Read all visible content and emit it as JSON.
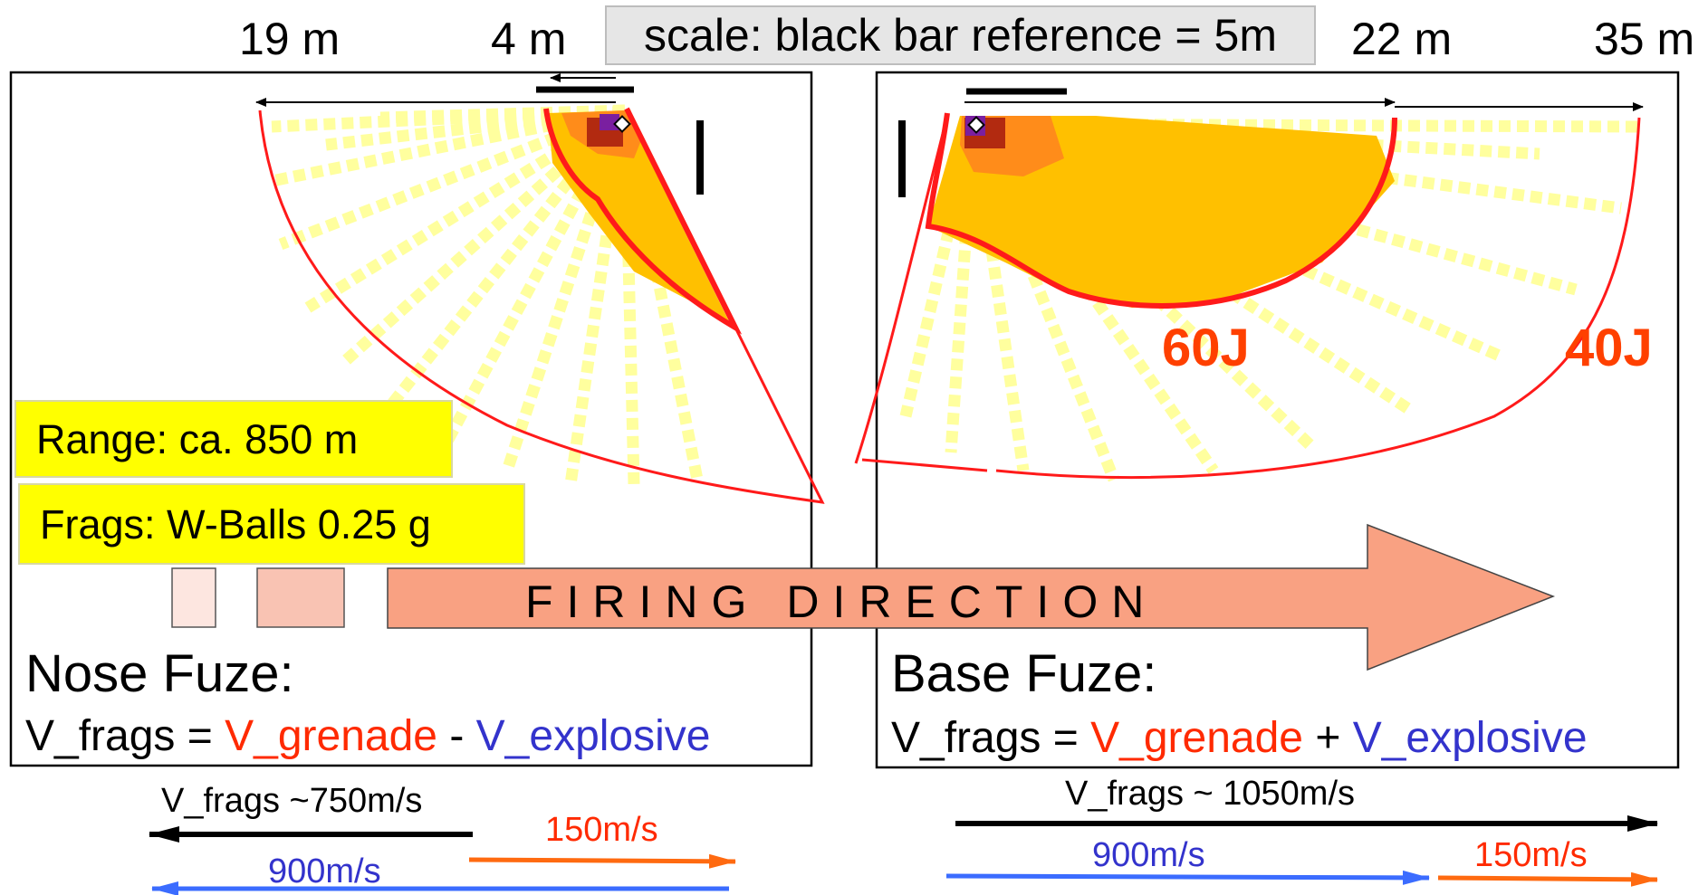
{
  "distances": {
    "d1": "19 m",
    "d2": "4 m",
    "d3": "22 m",
    "d4": "35 m"
  },
  "scale_label": "scale:  black bar reference = 5m",
  "range_label": "Range: ca. 850 m",
  "frags_label": "Frags: W-Balls 0.25 g",
  "firing_direction": "FIRING DIRECTION",
  "nose": {
    "title": "Nose Fuze:",
    "formula": {
      "lhs": "V_frags = ",
      "grenade": "V_grenade",
      "op": " - ",
      "explosive": "V_explosive"
    },
    "v_frags": "V_frags ~750m/s",
    "v_explosive": "900m/s",
    "v_grenade": "150m/s"
  },
  "base": {
    "title": "Base Fuze:",
    "formula": {
      "lhs": "V_frags = ",
      "grenade": "V_grenade",
      "op": " + ",
      "explosive": "V_explosive"
    },
    "v_frags": "V_frags ~ 1050m/s",
    "v_explosive": "900m/s",
    "v_grenade": "150m/s",
    "contour_inner": "60J",
    "contour_outer": "40J"
  },
  "colors": {
    "grenade": "#ff2a00",
    "explosive": "#3333cc",
    "contour": "#ff1a1a",
    "spray": "#ffff99",
    "core": "#ffc000",
    "arrow_fill": "#f9a182",
    "yellow_box": "#ffff00",
    "orange_arrow": "#ff6a10",
    "blue_arrow": "#3b6cff"
  }
}
